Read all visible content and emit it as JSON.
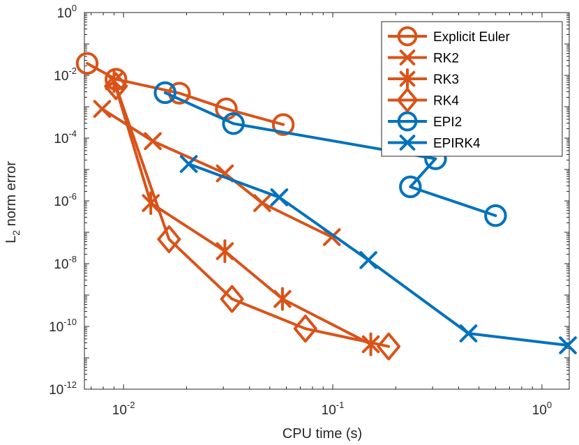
{
  "chart_data": {
    "type": "line",
    "xscale": "log",
    "yscale": "log",
    "xlabel": "CPU time (s)",
    "ylabel": {
      "base": "L",
      "subscript": "2",
      "rest": " norm error"
    },
    "xlim": [
      0.0065,
      1.35
    ],
    "ylim": [
      1e-12,
      1
    ],
    "x_ticks": [
      {
        "value": 0.01,
        "base": "10",
        "exp": "-2"
      },
      {
        "value": 0.1,
        "base": "10",
        "exp": "-1"
      },
      {
        "value": 1,
        "base": "10",
        "exp": "0"
      }
    ],
    "y_ticks": [
      {
        "value": 1,
        "base": "10",
        "exp": "0"
      },
      {
        "value": 0.01,
        "base": "10",
        "exp": "-2"
      },
      {
        "value": 0.0001,
        "base": "10",
        "exp": "-4"
      },
      {
        "value": 1e-06,
        "base": "10",
        "exp": "-6"
      },
      {
        "value": 1e-08,
        "base": "10",
        "exp": "-8"
      },
      {
        "value": 1e-10,
        "base": "10",
        "exp": "-10"
      },
      {
        "value": 1e-12,
        "base": "10",
        "exp": "-12"
      }
    ],
    "legend_position": "top-right",
    "grid": false,
    "series": [
      {
        "name": "Explicit Euler",
        "color": "#D95319",
        "marker": "circle",
        "x": [
          0.0067,
          0.0092,
          0.0185,
          0.031,
          0.058
        ],
        "y": [
          0.024,
          0.0075,
          0.0027,
          0.00085,
          0.00027
        ]
      },
      {
        "name": "RK2",
        "color": "#D95319",
        "marker": "x",
        "x": [
          0.0079,
          0.0138,
          0.0305,
          0.046,
          0.099
        ],
        "y": [
          0.00085,
          8e-05,
          7.5e-06,
          8.5e-07,
          7e-08
        ]
      },
      {
        "name": "RK3",
        "color": "#D95319",
        "marker": "asterisk",
        "x": [
          0.009,
          0.0135,
          0.0305,
          0.0575,
          0.152
        ],
        "y": [
          0.0065,
          8.5e-07,
          2.5e-08,
          7.5e-10,
          2.7e-11
        ]
      },
      {
        "name": "RK4",
        "color": "#D95319",
        "marker": "diamond",
        "x": [
          0.0092,
          0.0165,
          0.033,
          0.074,
          0.185
        ],
        "y": [
          0.0045,
          6e-08,
          7.5e-10,
          8.5e-11,
          2.3e-11
        ]
      },
      {
        "name": "EPI2",
        "color": "#0072BD",
        "marker": "circle",
        "x": [
          0.0158,
          0.0335,
          0.31,
          0.235,
          0.6
        ],
        "y": [
          0.0028,
          0.00029,
          2.2e-05,
          2.8e-06,
          3.4e-07
        ]
      },
      {
        "name": "EPIRK4",
        "color": "#0072BD",
        "marker": "x",
        "x": [
          0.0205,
          0.0555,
          0.148,
          0.445,
          1.33
        ],
        "y": [
          1.5e-05,
          1.3e-06,
          1.3e-08,
          6e-11,
          2.5e-11
        ]
      }
    ]
  }
}
